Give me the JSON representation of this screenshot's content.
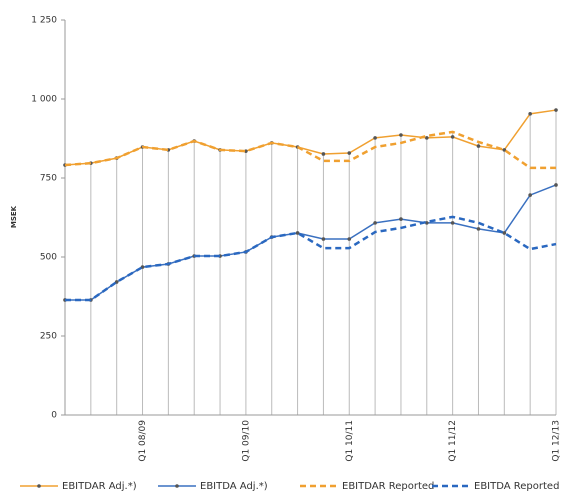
{
  "chart_data": {
    "type": "line",
    "y_label": "MSEK",
    "categories": [
      null,
      null,
      null,
      "Q1 08/09",
      null,
      null,
      null,
      "Q1 09/10",
      null,
      null,
      null,
      "Q1 10/11",
      null,
      null,
      null,
      "Q1 11/12",
      null,
      null,
      null,
      "Q1 12/13"
    ],
    "series": [
      {
        "name": "EBITDAR Adj.*)",
        "color": "#f0a030",
        "dashed": false,
        "markers": true,
        "values": [
          791,
          797,
          813,
          848,
          839,
          867,
          839,
          835,
          861,
          848,
          826,
          829,
          877,
          886,
          877,
          880,
          851,
          839,
          953,
          965
        ]
      },
      {
        "name": "EBITDA Adj.*)",
        "color": "#3a70c0",
        "dashed": false,
        "markers": true,
        "values": [
          364,
          364,
          421,
          468,
          478,
          503,
          503,
          516,
          563,
          576,
          557,
          557,
          608,
          620,
          608,
          608,
          589,
          576,
          696,
          728
        ]
      },
      {
        "name": "EBITDAR Reported",
        "color": "#f0a030",
        "dashed": true,
        "markers": false,
        "values": [
          791,
          797,
          813,
          848,
          839,
          867,
          839,
          835,
          861,
          848,
          804,
          804,
          848,
          861,
          883,
          896,
          864,
          839,
          782,
          782
        ]
      },
      {
        "name": "EBITDA Reported",
        "color": "#2a68c0",
        "dashed": true,
        "markers": false,
        "values": [
          364,
          364,
          421,
          468,
          478,
          503,
          503,
          516,
          563,
          576,
          528,
          528,
          579,
          592,
          611,
          627,
          608,
          576,
          525,
          541
        ]
      }
    ],
    "ylim": [
      0,
      1250
    ],
    "yticks": [
      0,
      250,
      500,
      750,
      {
        "value": 1000,
        "label": "1 000"
      },
      {
        "value": 1250,
        "label": "1 250"
      }
    ],
    "legend": "bottom"
  }
}
